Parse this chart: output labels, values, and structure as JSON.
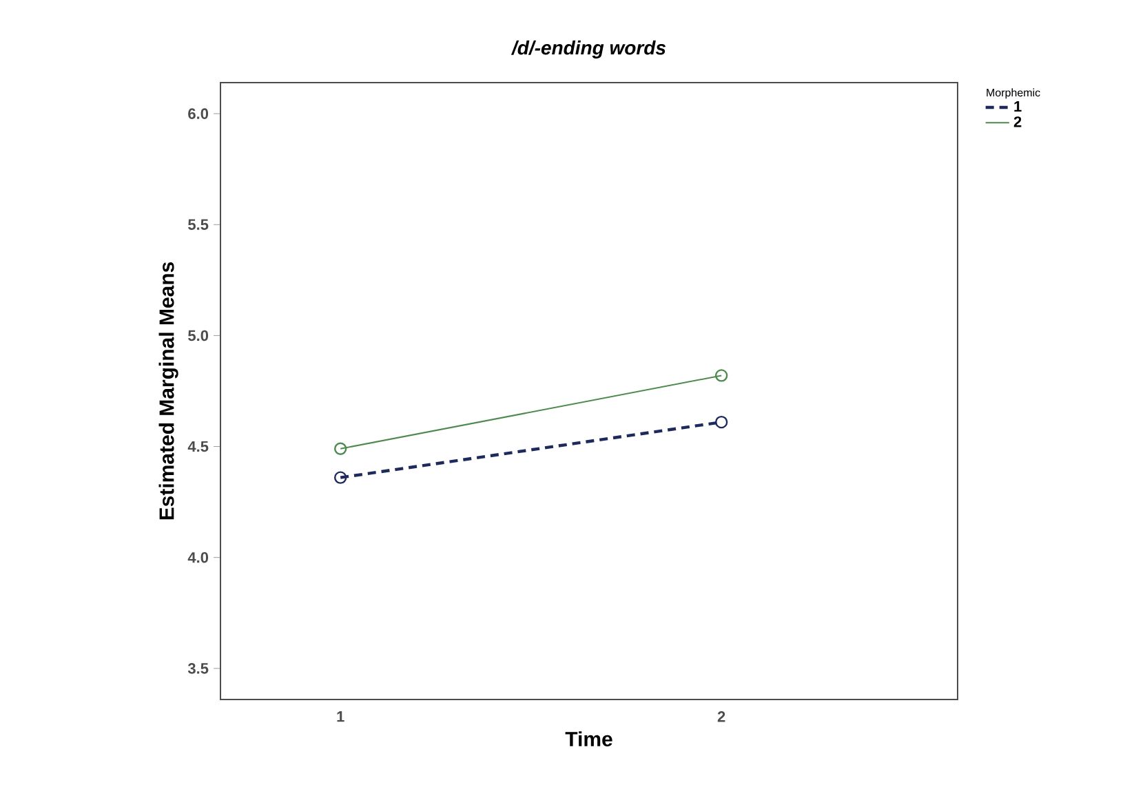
{
  "chart_data": {
    "type": "line",
    "title": "/d/-ending words",
    "xlabel": "Time",
    "ylabel": "Estimated Marginal Means",
    "legend_title": "Morphemic",
    "categories": [
      "1",
      "2"
    ],
    "series": [
      {
        "name": "1",
        "color": "#1f2a5c",
        "values": [
          4.36,
          4.61
        ],
        "line_style": "dashed"
      },
      {
        "name": "2",
        "color": "#4e8a4e",
        "values": [
          4.49,
          4.82
        ],
        "line_style": "solid"
      }
    ],
    "ylim": [
      3.36,
      6.14
    ],
    "yticks": [
      3.5,
      {
        "value": 4,
        "label": "4.0"
      },
      4.5,
      {
        "value": 5,
        "label": "5.0"
      },
      5.5,
      {
        "value": 6,
        "label": "6.0"
      }
    ],
    "marker": "circle",
    "legend": "top right",
    "grid": false
  }
}
